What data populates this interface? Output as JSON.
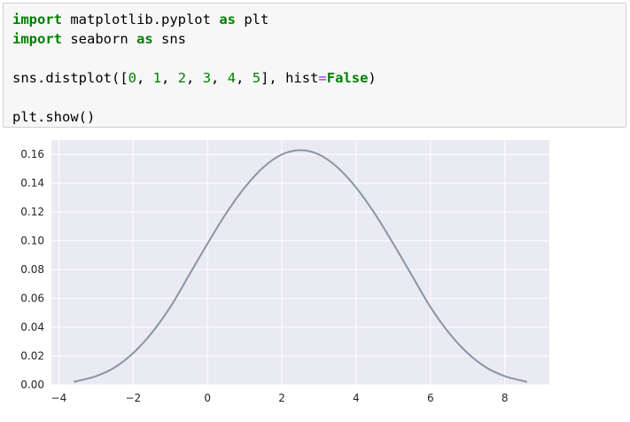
{
  "code_cell": {
    "lines": [
      [
        {
          "text": "import",
          "style": "kw"
        },
        {
          "text": " matplotlib.pyplot ",
          "style": "plain"
        },
        {
          "text": "as",
          "style": "kw"
        },
        {
          "text": " plt",
          "style": "plain"
        }
      ],
      [
        {
          "text": "import",
          "style": "kw"
        },
        {
          "text": " seaborn ",
          "style": "plain"
        },
        {
          "text": "as",
          "style": "kw"
        },
        {
          "text": " sns",
          "style": "plain"
        }
      ],
      [],
      [
        {
          "text": "sns.distplot([",
          "style": "plain"
        },
        {
          "text": "0",
          "style": "num"
        },
        {
          "text": ", ",
          "style": "plain"
        },
        {
          "text": "1",
          "style": "num"
        },
        {
          "text": ", ",
          "style": "plain"
        },
        {
          "text": "2",
          "style": "num"
        },
        {
          "text": ", ",
          "style": "plain"
        },
        {
          "text": "3",
          "style": "num"
        },
        {
          "text": ", ",
          "style": "plain"
        },
        {
          "text": "4",
          "style": "num"
        },
        {
          "text": ", ",
          "style": "plain"
        },
        {
          "text": "5",
          "style": "num"
        },
        {
          "text": "], hist",
          "style": "plain"
        },
        {
          "text": "=",
          "style": "op"
        },
        {
          "text": "False",
          "style": "kw"
        },
        {
          "text": ")",
          "style": "plain"
        }
      ],
      [],
      [
        {
          "text": "plt.show()",
          "style": "plain"
        }
      ]
    ]
  },
  "chart_data": {
    "type": "line",
    "title": "",
    "xlabel": "",
    "ylabel": "",
    "style": "seaborn-darkgrid",
    "background_color": "#eaeaf2",
    "grid_color": "#ffffff",
    "line_color": "#8895a6",
    "legend": "none",
    "xlim": [
      -4.2,
      9.2
    ],
    "ylim": [
      0.0,
      0.17
    ],
    "xticks": [
      -4,
      -2,
      0,
      2,
      4,
      6,
      8
    ],
    "xtick_labels": [
      "−4",
      "−2",
      "0",
      "2",
      "4",
      "6",
      "8"
    ],
    "yticks": [
      0.0,
      0.02,
      0.04,
      0.06,
      0.08,
      0.1,
      0.12,
      0.14,
      0.16
    ],
    "ytick_labels": [
      "0.00",
      "0.02",
      "0.04",
      "0.06",
      "0.08",
      "0.10",
      "0.12",
      "0.14",
      "0.16"
    ],
    "series": [
      {
        "x": [
          -3.6,
          -3.0,
          -2.5,
          -2.0,
          -1.5,
          -1.0,
          -0.5,
          0.0,
          0.5,
          1.0,
          1.5,
          2.0,
          2.5,
          3.0,
          3.5,
          4.0,
          4.5,
          5.0,
          5.5,
          6.0,
          6.5,
          7.0,
          7.5,
          8.0,
          8.6
        ],
        "y": [
          0.002,
          0.006,
          0.012,
          0.022,
          0.036,
          0.054,
          0.076,
          0.098,
          0.119,
          0.137,
          0.151,
          0.16,
          0.163,
          0.16,
          0.151,
          0.137,
          0.119,
          0.098,
          0.076,
          0.054,
          0.036,
          0.022,
          0.012,
          0.006,
          0.002
        ]
      }
    ]
  }
}
